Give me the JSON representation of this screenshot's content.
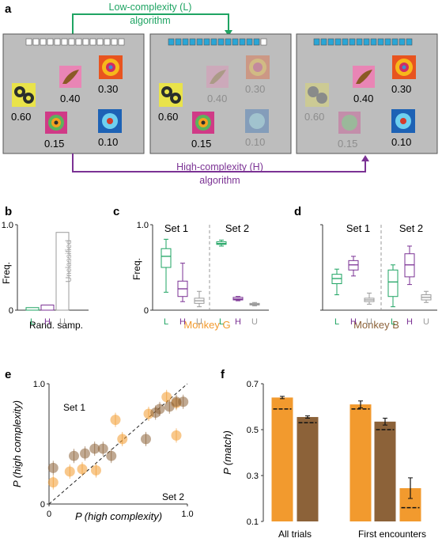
{
  "panels": {
    "a": {
      "letter": "a",
      "low_label_1": "Low-complexity (L)",
      "low_label_2": "algorithm",
      "high_label_1": "High-complexity (H)",
      "high_label_2": "algorithm",
      "probs": [
        "0.60",
        "0.40",
        "0.30",
        "0.15",
        "0.10"
      ],
      "colors": {
        "low": "#1fa463",
        "high": "#7b3294",
        "progress": "#2aa6d6",
        "bg": "#bdbdbd"
      }
    },
    "b": {
      "letter": "b",
      "ylabel": "Freq.",
      "xlabel": "Rand. samp.",
      "unclassified": "Unclassified"
    },
    "c": {
      "letter": "c",
      "ylabel": "Freq.",
      "set1": "Set 1",
      "set2": "Set 2",
      "monkey": "Monkey G"
    },
    "d": {
      "letter": "d",
      "set1": "Set 1",
      "set2": "Set 2",
      "monkey": "Monkey B"
    },
    "e": {
      "letter": "e",
      "ylabel": "P (high complexity)",
      "xlabel": "P (high complexity)",
      "set1": "Set 1",
      "set2": "Set 2"
    },
    "f": {
      "letter": "f",
      "ylabel": "P (match)"
    }
  },
  "chart_data": [
    {
      "panel": "b",
      "type": "bar",
      "categories": [
        "L",
        "H",
        "U"
      ],
      "values": [
        0.03,
        0.06,
        0.91
      ],
      "yticks": [
        "0",
        "1.0"
      ],
      "ylim": [
        0,
        1
      ]
    },
    {
      "panel": "c",
      "type": "box",
      "categories": [
        "L",
        "H",
        "U",
        "L",
        "H",
        "U"
      ],
      "yticks": [
        "0",
        "1.0"
      ],
      "ylim": [
        0,
        1
      ],
      "boxes": [
        {
          "set": 1,
          "cat": "L",
          "min": 0.21,
          "q1": 0.5,
          "med": 0.63,
          "q3": 0.72,
          "max": 0.83
        },
        {
          "set": 1,
          "cat": "H",
          "min": 0.1,
          "q1": 0.16,
          "med": 0.25,
          "q3": 0.34,
          "max": 0.55
        },
        {
          "set": 1,
          "cat": "U",
          "min": 0.04,
          "q1": 0.08,
          "med": 0.11,
          "q3": 0.14,
          "max": 0.22
        },
        {
          "set": 2,
          "cat": "L",
          "min": 0.75,
          "q1": 0.77,
          "med": 0.78,
          "q3": 0.8,
          "max": 0.82
        },
        {
          "set": 2,
          "cat": "H",
          "min": 0.11,
          "q1": 0.12,
          "med": 0.13,
          "q3": 0.15,
          "max": 0.16
        },
        {
          "set": 2,
          "cat": "U",
          "min": 0.05,
          "q1": 0.06,
          "med": 0.07,
          "q3": 0.08,
          "max": 0.09
        }
      ]
    },
    {
      "panel": "d",
      "type": "box",
      "categories": [
        "L",
        "H",
        "U",
        "L",
        "H",
        "U"
      ],
      "boxes": [
        {
          "set": 1,
          "cat": "L",
          "min": 0.18,
          "q1": 0.31,
          "med": 0.37,
          "q3": 0.42,
          "max": 0.48
        },
        {
          "set": 1,
          "cat": "H",
          "min": 0.4,
          "q1": 0.47,
          "med": 0.53,
          "q3": 0.58,
          "max": 0.63
        },
        {
          "set": 1,
          "cat": "U",
          "min": 0.07,
          "q1": 0.1,
          "med": 0.12,
          "q3": 0.14,
          "max": 0.2
        },
        {
          "set": 2,
          "cat": "L",
          "min": 0.04,
          "q1": 0.16,
          "med": 0.33,
          "q3": 0.47,
          "max": 0.53
        },
        {
          "set": 2,
          "cat": "H",
          "min": 0.3,
          "q1": 0.39,
          "med": 0.53,
          "q3": 0.66,
          "max": 0.75
        },
        {
          "set": 2,
          "cat": "U",
          "min": 0.09,
          "q1": 0.12,
          "med": 0.15,
          "q3": 0.18,
          "max": 0.22
        }
      ]
    },
    {
      "panel": "e",
      "type": "scatter",
      "xlim": [
        0,
        1
      ],
      "ylim": [
        0,
        1
      ],
      "xticks": [
        "0",
        "1.0"
      ],
      "yticks": [
        "0",
        "1.0"
      ],
      "series": [
        {
          "points": [
            [
              0.03,
              0.3
            ],
            [
              0.18,
              0.4
            ],
            [
              0.26,
              0.42
            ],
            [
              0.33,
              0.46
            ],
            [
              0.39,
              0.46
            ],
            [
              0.45,
              0.4
            ],
            [
              0.7,
              0.54
            ],
            [
              0.77,
              0.76
            ],
            [
              0.8,
              0.79
            ],
            [
              0.87,
              0.81
            ],
            [
              0.92,
              0.85
            ],
            [
              0.97,
              0.85
            ]
          ],
          "color": "#8c6239"
        },
        {
          "points": [
            [
              0.03,
              0.18
            ],
            [
              0.15,
              0.27
            ],
            [
              0.24,
              0.29
            ],
            [
              0.34,
              0.28
            ],
            [
              0.48,
              0.7
            ],
            [
              0.53,
              0.54
            ],
            [
              0.72,
              0.75
            ],
            [
              0.85,
              0.89
            ],
            [
              0.92,
              0.84
            ],
            [
              0.92,
              0.57
            ]
          ],
          "color": "#f29a2e"
        }
      ]
    },
    {
      "panel": "f",
      "type": "bar",
      "groups": [
        "All trials",
        "First encounters"
      ],
      "yticks": [
        "0.1",
        "0.3",
        "0.5",
        "0.7"
      ],
      "ylim": [
        0.1,
        0.7
      ],
      "bars": [
        {
          "group": "All trials",
          "value": 0.64,
          "err": 0.005,
          "chance": 0.59,
          "color": "#f29a2e"
        },
        {
          "group": "All trials",
          "value": 0.555,
          "err": 0.005,
          "chance": 0.53,
          "color": "#8c6239"
        },
        {
          "group": "First encounters",
          "value": 0.61,
          "err": 0.015,
          "chance": 0.59,
          "color": "#f29a2e"
        },
        {
          "group": "First encounters",
          "value": 0.535,
          "err": 0.015,
          "chance": 0.5,
          "color": "#8c6239"
        },
        {
          "group": "First encounters",
          "value": 0.245,
          "err": 0.045,
          "chance": 0.16,
          "color": "#f29a2e"
        }
      ]
    }
  ]
}
